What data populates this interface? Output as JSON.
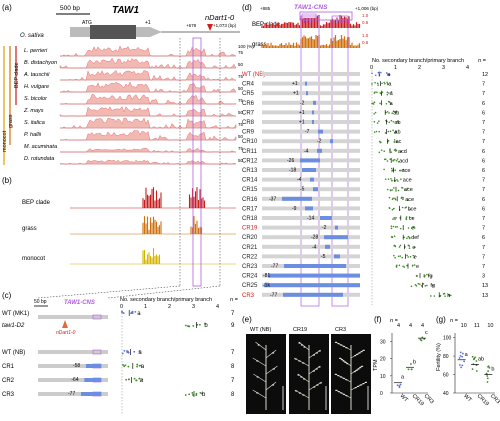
{
  "a": {
    "label": "(a)",
    "scale": "500 bp",
    "gene": "TAW1",
    "atg": "ATG",
    "plus1": "+1",
    "insertion": "nDart1-0",
    "pos1": "+678",
    "pos2": "+1,073 (bp)",
    "ref": "O. sativa",
    "pct": "100 (%)",
    "ticks": [
      "75",
      "50"
    ],
    "species": [
      "L. perrieri",
      "B. distachyon",
      "A. tauschii",
      "H. vulgare",
      "S. bicolor",
      "Z. mays",
      "S. italica",
      "P. hallii",
      "M. acuminata",
      "D. rotundata"
    ],
    "groups": [
      "monocot",
      "grass",
      "BEP clade"
    ]
  },
  "b": {
    "label": "(b)",
    "tracks": [
      "BEP clade",
      "grass",
      "monocot"
    ]
  },
  "c": {
    "label": "(c)",
    "scale": "50 bp",
    "cns": "TAW1-CNS",
    "insertion": "nDart1-0",
    "axis_title": "No. secondary branch/primary branch",
    "n_header": "n =",
    "ticks": [
      "0",
      "1",
      "2",
      "3",
      "4"
    ],
    "top_lines": [
      {
        "name": "WT (MK1)",
        "n": "7",
        "letter": "a",
        "mean": 0.3
      },
      {
        "name": "taw1-D2",
        "n": "9",
        "letter": "b",
        "mean": 3.1
      }
    ],
    "bottom_lines": [
      {
        "name": "WT (NB)",
        "n": "7",
        "letter": "a",
        "mean": 0.35,
        "del": ""
      },
      {
        "name": "CR1",
        "n": "8",
        "letter": "a",
        "mean": 0.45,
        "del": "-58"
      },
      {
        "name": "CR2",
        "n": "7",
        "letter": "a",
        "mean": 0.4,
        "del": "-64"
      },
      {
        "name": "CR3",
        "n": "8",
        "letter": "b",
        "mean": 3.0,
        "del": "-77"
      }
    ]
  },
  "d": {
    "label": "(d)",
    "start": "+885",
    "end": "+1,006 (bp)",
    "cns": "TAW1-CNS",
    "h1": "H1",
    "h2": "H2",
    "tracks": [
      "BEP clade",
      "grass"
    ],
    "track_ticks": [
      "1.0",
      "0.5",
      "1.0",
      "0.5"
    ],
    "axis_title": "No. secondary branch/primary branch",
    "n_header": "n =",
    "ticks": [
      "0",
      "1",
      "2",
      "3",
      "4"
    ],
    "rows": [
      {
        "name": "WT (NB)",
        "mut": "",
        "letter": "a",
        "n": "12",
        "mean": 0.3
      },
      {
        "name": "CR4",
        "mut": "+1",
        "letter": "a",
        "n": "7",
        "mean": 0.35
      },
      {
        "name": "CR5",
        "mut": "+1",
        "letter": "a",
        "n": "7",
        "mean": 0.4
      },
      {
        "name": "CR6",
        "mut": "-2",
        "letter": "a",
        "n": "6",
        "mean": 0.4
      },
      {
        "name": "CR7",
        "mut": "+1",
        "letter": "ab",
        "n": "6",
        "mean": 0.55
      },
      {
        "name": "CR8",
        "mut": "+1",
        "letter": "ab",
        "n": "7",
        "mean": 0.6
      },
      {
        "name": "CR9",
        "mut": "-7",
        "letter": "ab",
        "n": "7",
        "mean": 0.6
      },
      {
        "name": "CR10",
        "mut": "-2",
        "letter": "ac",
        "n": "7",
        "mean": 0.65
      },
      {
        "name": "CR11",
        "mut": "-4",
        "letter": "acd",
        "n": "6",
        "mean": 0.75
      },
      {
        "name": "CR12",
        "mut": "-26",
        "letter": "acd",
        "n": "6",
        "mean": 0.8
      },
      {
        "name": "CR13",
        "mut": "-18",
        "letter": "ace",
        "n": "6",
        "mean": 0.9
      },
      {
        "name": "CR14",
        "mut": "-4",
        "letter": "ace",
        "n": "7",
        "mean": 0.95
      },
      {
        "name": "CR15",
        "mut": "-5",
        "letter": "ace",
        "n": "7",
        "mean": 1.0
      },
      {
        "name": "CR16",
        "mut": "-37",
        "letter": "ace",
        "n": "6",
        "mean": 1.05
      },
      {
        "name": "CR17",
        "mut": "-9",
        "letter": "bce",
        "n": "6",
        "mean": 1.15
      },
      {
        "name": "CR18",
        "mut": "-14",
        "letter": "ce",
        "n": "7",
        "mean": 1.2
      },
      {
        "name": "CR19",
        "mut": "-2",
        "letter": "e",
        "n": "7",
        "mean": 1.3
      },
      {
        "name": "CR20",
        "mut": "-28",
        "letter": "def",
        "n": "6",
        "mean": 1.3
      },
      {
        "name": "CR21",
        "mut": "-4",
        "letter": "e",
        "n": "7",
        "mean": 1.35
      },
      {
        "name": "CR22",
        "mut": "-5",
        "letter": "e",
        "n": "7",
        "mean": 1.4
      },
      {
        "name": "CR23",
        "mut": "-77",
        "letter": "e",
        "n": "7",
        "mean": 1.5
      },
      {
        "name": "CR24",
        "mut": "-81",
        "letter": "fg",
        "n": "3",
        "mean": 2.0
      },
      {
        "name": "CR25",
        "mut": "-1k",
        "letter": "fg",
        "n": "13",
        "mean": 2.1
      },
      {
        "name": "CR3",
        "mut": "-77",
        "letter": "h",
        "n": "13",
        "mean": 2.8
      }
    ]
  },
  "e": {
    "label": "(e)",
    "panels": [
      "WT (NB)",
      "CR19",
      "CR3"
    ]
  },
  "f": {
    "label": "(f)",
    "ylabel": "TPM",
    "n_header": "n =",
    "n": [
      "4",
      "4",
      "4"
    ],
    "yticks": [
      "30",
      "20",
      "10",
      "0"
    ],
    "groups": [
      "WT",
      "CR19",
      "CR3"
    ],
    "letters": [
      "a",
      "b",
      "c"
    ],
    "values": [
      6,
      15,
      32
    ]
  },
  "g": {
    "label": "(g)",
    "ylabel": "Fertility (%)",
    "n_header": "n =",
    "n": [
      "10",
      "11",
      "10"
    ],
    "yticks": [
      "100",
      "80",
      "60",
      "40"
    ],
    "groups": [
      "WT",
      "CR19",
      "CR3"
    ],
    "letters": [
      "a",
      "ab",
      "b"
    ],
    "values": [
      76,
      71,
      60
    ]
  },
  "colors": {
    "cons": "#e0565a",
    "cons_fill": "#f2b9b2",
    "bep": "#c81e1e",
    "grass": "#d0700f",
    "monocot": "#d4b400",
    "highlight": "#b05ce0",
    "wt_blue": "#5b6fd6",
    "dot_green": "#3d8b27",
    "red_label": "#d61c1c",
    "deletion": "#6b8ee0"
  }
}
